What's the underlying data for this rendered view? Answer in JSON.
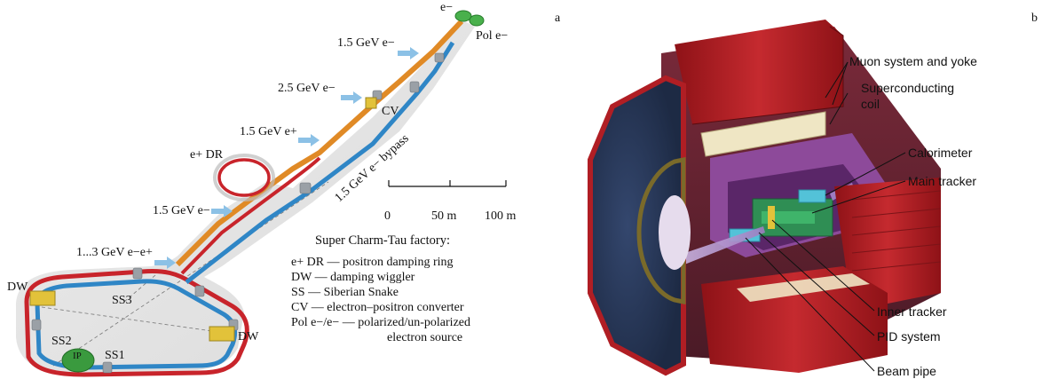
{
  "panel_labels": {
    "a": "a",
    "b": "b"
  },
  "accelerator": {
    "beam_labels": {
      "e_minus_top": "e−",
      "pol_e": "Pol e−",
      "gev_1_5_e_minus": "1.5 GeV e−",
      "gev_2_5_e_minus": "2.5 GeV e−",
      "cv": "CV",
      "gev_1_5_e_plus": "1.5 GeV e+",
      "bypass": "1.5 GeV e− bypass",
      "e_plus_dr": "e+ DR",
      "gev_1_5_e_mid": "1.5 GeV e−",
      "gev_1_3": "1...3 GeV e−e+"
    },
    "ring_labels": {
      "dw_left": "DW",
      "dw_right": "DW",
      "ss1": "SS1",
      "ss2": "SS2",
      "ss3": "SS3",
      "ip": "IP"
    },
    "scale_bar": {
      "label_0": "0",
      "label_50": "50 m",
      "label_100": "100 m"
    },
    "legend": {
      "title": "Super Charm-Tau factory:",
      "lines": [
        "e+ DR — positron damping ring",
        "DW — damping wiggler",
        "SS — Siberian Snake",
        "CV — electron–positron converter",
        "Pol e−/e− — polarized/un-polarized",
        "electron source"
      ]
    }
  },
  "detector": {
    "labels": {
      "muon": "Muon system and yoke",
      "coil_1": "Superconducting",
      "coil_2": "coil",
      "calorimeter": "Calorimeter",
      "main_tracker": "Main tracker",
      "inner_tracker": "Inner tracker",
      "pid": "PID system",
      "beam_pipe": "Beam pipe"
    }
  },
  "colors": {
    "ring_red": "#c8242b",
    "ring_blue": "#2f86c6",
    "linac_orange": "#e08a26",
    "arrow_blue": "#8cc1e6",
    "yoke_red": "#b01e24",
    "yoke_dark": "#2b3a5c",
    "coil_cream": "#efe6c4",
    "inner_purple": "#7d3a8c"
  }
}
